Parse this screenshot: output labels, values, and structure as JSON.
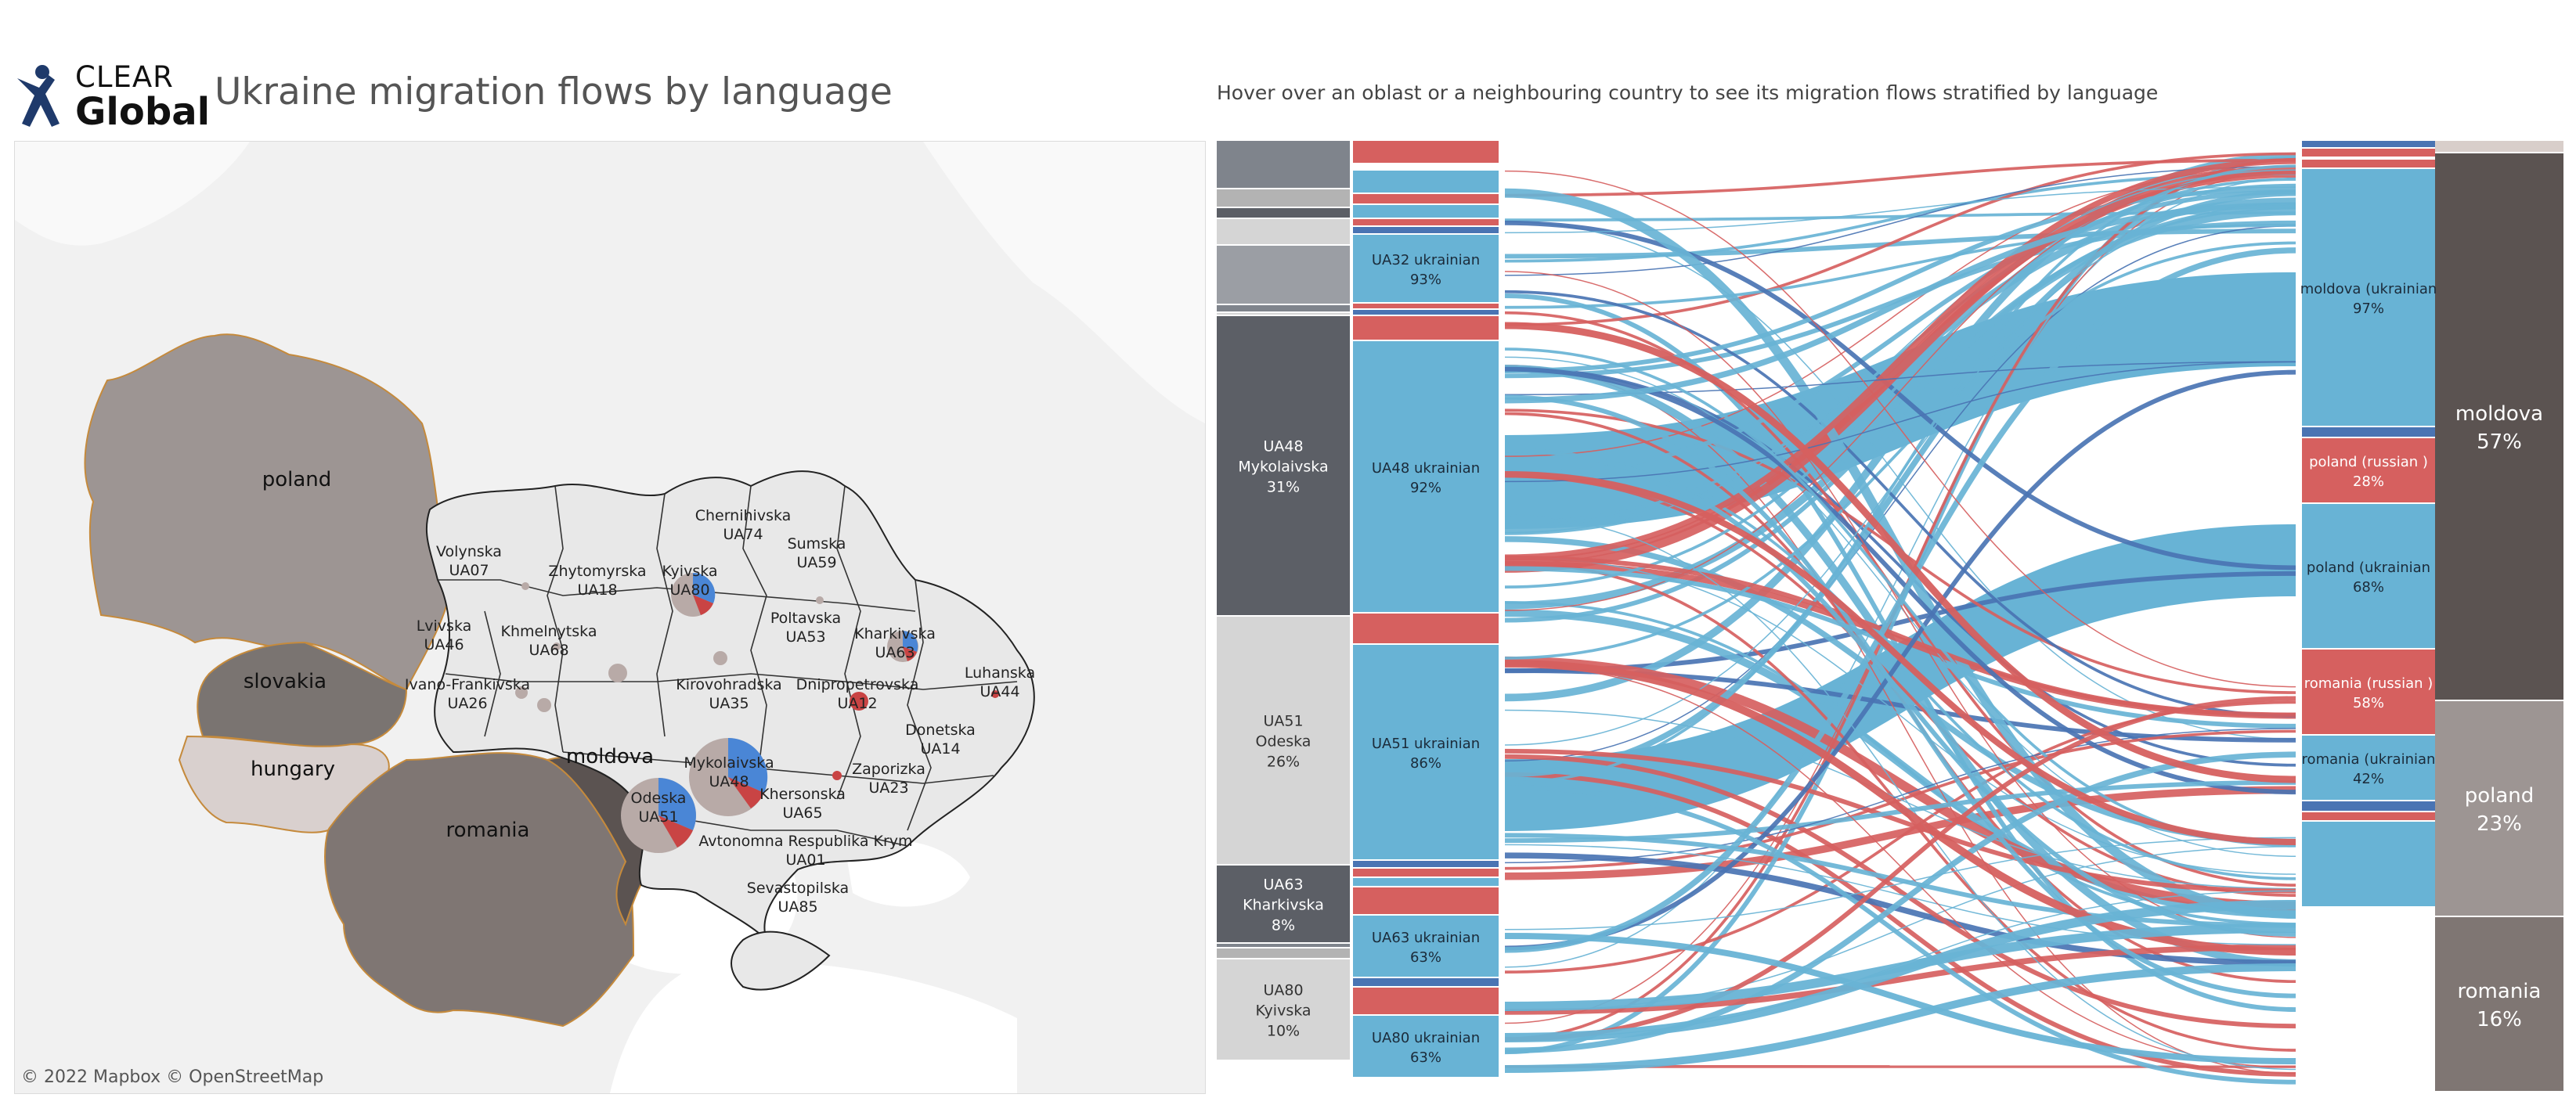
{
  "header": {
    "logo_top": "CLEAR",
    "logo_bottom": "Global",
    "title": "Ukraine migration flows by language",
    "subtitle": "Hover over an oblast or a neighbouring country to see its migration flows stratified by language"
  },
  "map": {
    "attribution": "© 2022 Mapbox  © OpenStreetMap",
    "countries": [
      {
        "name": "poland",
        "color": "#9d9593"
      },
      {
        "name": "slovakia",
        "color": "#7a7471"
      },
      {
        "name": "hungary",
        "color": "#d9d0ce"
      },
      {
        "name": "romania",
        "color": "#7f7673"
      },
      {
        "name": "moldova",
        "color": "#5b5351"
      }
    ],
    "oblasts": [
      {
        "name": "Volynska",
        "code": "UA07"
      },
      {
        "name": "Lvivska",
        "code": "UA46"
      },
      {
        "name": "Zhytomyrska",
        "code": "UA18"
      },
      {
        "name": "Khmelnytska",
        "code": "UA68"
      },
      {
        "name": "Ivano-Frankivska",
        "code": "UA26"
      },
      {
        "name": "Chernihivska",
        "code": "UA74"
      },
      {
        "name": "Sumska",
        "code": "UA59"
      },
      {
        "name": "Kyivska",
        "code": "UA80"
      },
      {
        "name": "Poltavska",
        "code": "UA53"
      },
      {
        "name": "Kharkivska",
        "code": "UA63"
      },
      {
        "name": "Kirovohradska",
        "code": "UA35"
      },
      {
        "name": "Dnipropetrovska",
        "code": "UA12"
      },
      {
        "name": "Luhanska",
        "code": "UA44"
      },
      {
        "name": "Donetska",
        "code": "UA14"
      },
      {
        "name": "Mykolaivska",
        "code": "UA48"
      },
      {
        "name": "Odeska",
        "code": "UA51"
      },
      {
        "name": "Zaporizka",
        "code": "UA23"
      },
      {
        "name": "Khersonska",
        "code": "UA65"
      },
      {
        "name": "Avtonomna Respublika Krym",
        "code": "UA01"
      },
      {
        "name": "Sevastopilska",
        "code": "UA85"
      }
    ]
  },
  "chart_data": {
    "type": "sankey",
    "colors": {
      "ukrainian": "#68b3d5",
      "russian": "#d6605f",
      "other": "#4a74b3"
    },
    "sources": [
      {
        "label": "UA48\nMykolaivska\n31%",
        "share": 31,
        "color": "#5c5f66"
      },
      {
        "label": "UA51\nOdeska\n26%",
        "share": 26,
        "color": "#d5d5d5"
      },
      {
        "label": "UA63\nKharkivska\n8%",
        "share": 8,
        "color": "#5c5f66"
      },
      {
        "label": "UA80\nKyivska\n10%",
        "share": 10,
        "color": "#d5d5d5"
      }
    ],
    "source_languages": [
      {
        "label": "UA32 ukrainian\n93%",
        "source": "UA32",
        "language": "ukrainian",
        "percent": 93
      },
      {
        "label": "UA48 ukrainian\n92%",
        "source": "UA48",
        "language": "ukrainian",
        "percent": 92
      },
      {
        "label": "UA51 ukrainian\n86%",
        "source": "UA51",
        "language": "ukrainian",
        "percent": 86
      },
      {
        "label": "UA63 ukrainian\n63%",
        "source": "UA63",
        "language": "ukrainian",
        "percent": 63
      },
      {
        "label": "UA80 ukrainian\n63%",
        "source": "UA80",
        "language": "ukrainian",
        "percent": 63
      }
    ],
    "destination_languages": [
      {
        "label": "moldova (ukrainian\n97%",
        "country": "moldova",
        "language": "ukrainian",
        "percent": 97
      },
      {
        "label": "poland (russian )\n28%",
        "country": "poland",
        "language": "russian",
        "percent": 28
      },
      {
        "label": "poland (ukrainian\n68%",
        "country": "poland",
        "language": "ukrainian",
        "percent": 68
      },
      {
        "label": "romania (russian )\n58%",
        "country": "romania",
        "language": "russian",
        "percent": 58
      },
      {
        "label": "romania (ukrainian\n42%",
        "country": "romania",
        "language": "ukrainian",
        "percent": 42
      }
    ],
    "destinations": [
      {
        "label": "moldova\n57%",
        "share": 57,
        "color": "#5b5351"
      },
      {
        "label": "poland\n23%",
        "share": 23,
        "color": "#9d9593"
      },
      {
        "label": "romania\n16%",
        "share": 16,
        "color": "#7f7673"
      }
    ]
  }
}
